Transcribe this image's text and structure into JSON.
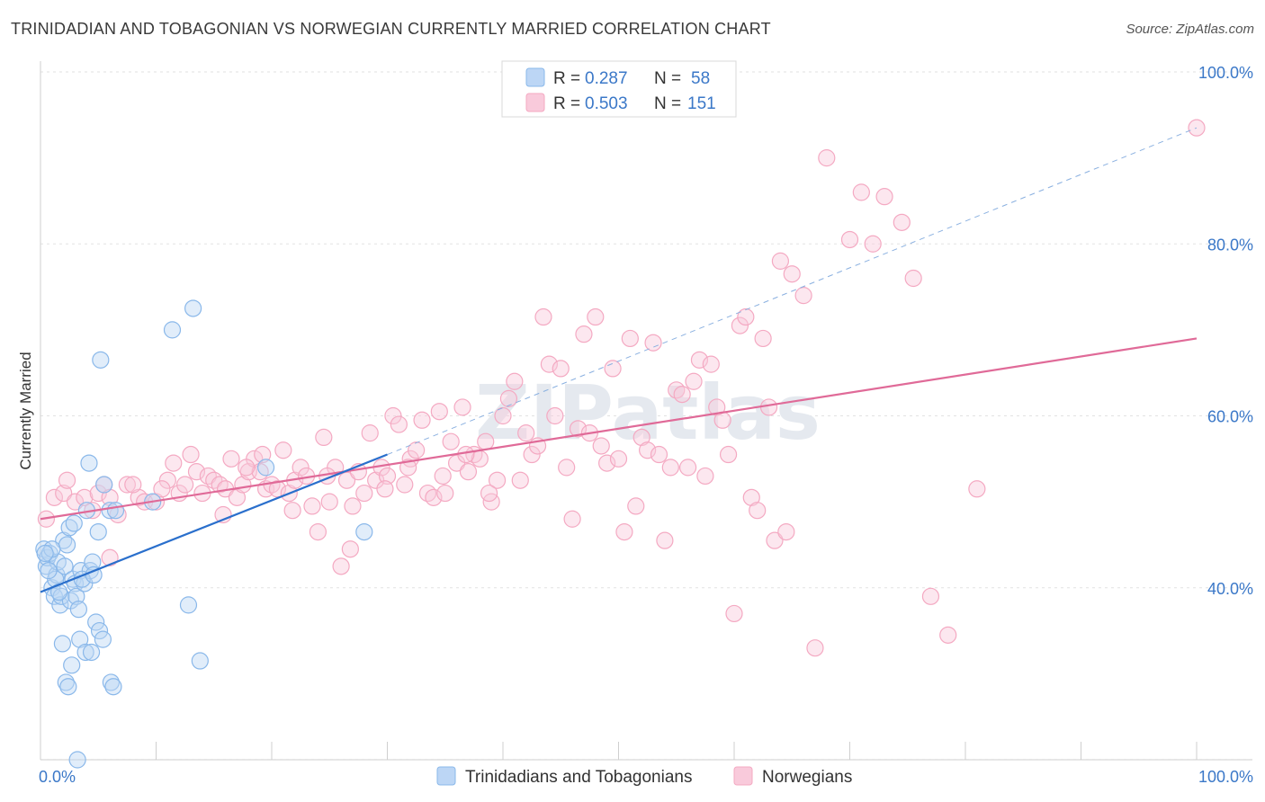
{
  "title": "TRINIDADIAN AND TOBAGONIAN VS NORWEGIAN CURRENTLY MARRIED CORRELATION CHART",
  "source": "Source: ZipAtlas.com",
  "watermark": "ZIPatlas",
  "colors": {
    "blue": "#8ab8ea",
    "blue_line": "#2a6fcc",
    "pink": "#f4a9c2",
    "pink_line": "#e06a98",
    "tick_text": "#3b78c8"
  },
  "legend_top": {
    "rows": [
      {
        "r_label": "R =",
        "r_value": "0.287",
        "n_label": "N =",
        "n_value": "58"
      },
      {
        "r_label": "R =",
        "r_value": "0.503",
        "n_label": "N =",
        "n_value": "151"
      }
    ]
  },
  "legend_bottom": [
    {
      "label": "Trinidadians and Tobagonians"
    },
    {
      "label": "Norwegians"
    }
  ],
  "chart_data": {
    "type": "scatter",
    "ylabel": "Currently Married",
    "xlim": [
      0,
      100
    ],
    "ylim": [
      20,
      100
    ],
    "x_tick_labels": [
      "0.0%",
      "100.0%"
    ],
    "y_ticks": [
      {
        "value": 40,
        "label": "40.0%"
      },
      {
        "value": 60,
        "label": "60.0%"
      },
      {
        "value": 80,
        "label": "80.0%"
      },
      {
        "value": 100,
        "label": "100.0%"
      }
    ],
    "grid": "horizontal dashed",
    "series": [
      {
        "name": "Trinidadians and Tobagonians",
        "color": "#8ab8ea",
        "trend": {
          "x1": 0,
          "y1": 39.5,
          "x2": 30,
          "y2": 55.5
        },
        "trend_dashed": {
          "x1": 30,
          "y1": 55.5,
          "x2": 100,
          "y2": 93.5
        },
        "points": [
          [
            0.3,
            44.5
          ],
          [
            0.5,
            42.5
          ],
          [
            0.6,
            43.5
          ],
          [
            0.8,
            44.0
          ],
          [
            1.0,
            40.0
          ],
          [
            1.2,
            39.0
          ],
          [
            1.4,
            41.5
          ],
          [
            1.5,
            43.0
          ],
          [
            1.7,
            38.0
          ],
          [
            1.8,
            39.0
          ],
          [
            2.0,
            45.5
          ],
          [
            2.1,
            42.5
          ],
          [
            2.3,
            45.0
          ],
          [
            2.5,
            47.0
          ],
          [
            2.6,
            38.5
          ],
          [
            2.8,
            41.0
          ],
          [
            3.0,
            40.5
          ],
          [
            3.1,
            39.0
          ],
          [
            3.3,
            37.5
          ],
          [
            3.5,
            42.0
          ],
          [
            3.8,
            40.5
          ],
          [
            4.0,
            49.0
          ],
          [
            4.2,
            54.5
          ],
          [
            4.3,
            42.0
          ],
          [
            4.5,
            43.0
          ],
          [
            5.0,
            46.5
          ],
          [
            5.2,
            66.5
          ],
          [
            5.5,
            52.0
          ],
          [
            6.0,
            49.0
          ],
          [
            6.5,
            49.0
          ],
          [
            1.0,
            44.5
          ],
          [
            1.3,
            41.0
          ],
          [
            1.9,
            33.5
          ],
          [
            2.2,
            29.0
          ],
          [
            2.4,
            28.5
          ],
          [
            2.7,
            31.0
          ],
          [
            3.4,
            34.0
          ],
          [
            3.9,
            32.5
          ],
          [
            4.4,
            32.5
          ],
          [
            4.8,
            36.0
          ],
          [
            5.1,
            35.0
          ],
          [
            5.4,
            34.0
          ],
          [
            6.1,
            29.0
          ],
          [
            6.3,
            28.5
          ],
          [
            9.7,
            50.0
          ],
          [
            11.4,
            70.0
          ],
          [
            12.8,
            38.0
          ],
          [
            13.2,
            72.5
          ],
          [
            13.8,
            31.5
          ],
          [
            19.5,
            54.0
          ],
          [
            28.0,
            46.5
          ],
          [
            3.2,
            20.0
          ],
          [
            0.7,
            42.0
          ],
          [
            1.6,
            39.5
          ],
          [
            2.9,
            47.5
          ],
          [
            3.6,
            41.0
          ],
          [
            4.6,
            41.5
          ],
          [
            0.4,
            44.0
          ]
        ]
      },
      {
        "name": "Norwegians",
        "color": "#f4a9c2",
        "trend": {
          "x1": 0,
          "y1": 48.0,
          "x2": 100,
          "y2": 69.0
        },
        "points": [
          [
            0.5,
            48.0
          ],
          [
            1.2,
            50.5
          ],
          [
            2.0,
            51.0
          ],
          [
            2.3,
            52.5
          ],
          [
            3.0,
            50.0
          ],
          [
            3.8,
            50.5
          ],
          [
            4.5,
            49.0
          ],
          [
            5.0,
            51.0
          ],
          [
            5.5,
            52.0
          ],
          [
            6.0,
            50.5
          ],
          [
            6.7,
            48.5
          ],
          [
            7.5,
            52.0
          ],
          [
            8.5,
            50.5
          ],
          [
            9.0,
            50.0
          ],
          [
            10.0,
            50.0
          ],
          [
            11.0,
            52.5
          ],
          [
            11.5,
            54.5
          ],
          [
            12.0,
            51.0
          ],
          [
            12.5,
            52.0
          ],
          [
            13.0,
            55.5
          ],
          [
            13.5,
            53.5
          ],
          [
            14.0,
            51.0
          ],
          [
            14.5,
            53.0
          ],
          [
            15.0,
            52.5
          ],
          [
            15.5,
            52.0
          ],
          [
            16.0,
            51.5
          ],
          [
            16.5,
            55.0
          ],
          [
            17.0,
            50.5
          ],
          [
            17.5,
            52.0
          ],
          [
            18.0,
            53.5
          ],
          [
            18.5,
            55.0
          ],
          [
            19.0,
            53.5
          ],
          [
            19.5,
            51.5
          ],
          [
            20.0,
            52.0
          ],
          [
            20.5,
            51.5
          ],
          [
            21.0,
            56.0
          ],
          [
            21.5,
            51.0
          ],
          [
            22.0,
            52.5
          ],
          [
            22.5,
            54.0
          ],
          [
            23.0,
            53.0
          ],
          [
            23.5,
            49.5
          ],
          [
            24.0,
            46.5
          ],
          [
            24.5,
            57.5
          ],
          [
            25.0,
            50.0
          ],
          [
            25.5,
            54.0
          ],
          [
            26.0,
            42.5
          ],
          [
            26.5,
            52.5
          ],
          [
            27.0,
            49.5
          ],
          [
            27.5,
            53.5
          ],
          [
            28.0,
            51.0
          ],
          [
            28.5,
            58.0
          ],
          [
            29.0,
            52.5
          ],
          [
            29.5,
            54.0
          ],
          [
            30.0,
            53.0
          ],
          [
            30.5,
            60.0
          ],
          [
            31.0,
            59.0
          ],
          [
            31.5,
            52.0
          ],
          [
            32.0,
            55.0
          ],
          [
            32.5,
            56.0
          ],
          [
            33.0,
            59.5
          ],
          [
            33.5,
            51.0
          ],
          [
            34.0,
            50.5
          ],
          [
            34.5,
            60.5
          ],
          [
            35.0,
            51.0
          ],
          [
            35.5,
            57.0
          ],
          [
            36.0,
            54.5
          ],
          [
            36.5,
            61.0
          ],
          [
            37.0,
            53.5
          ],
          [
            37.5,
            55.5
          ],
          [
            38.0,
            55.0
          ],
          [
            38.5,
            57.0
          ],
          [
            39.0,
            50.0
          ],
          [
            39.5,
            52.5
          ],
          [
            40.0,
            60.0
          ],
          [
            40.5,
            62.0
          ],
          [
            41.0,
            64.0
          ],
          [
            41.5,
            52.5
          ],
          [
            42.0,
            58.0
          ],
          [
            42.5,
            55.5
          ],
          [
            43.0,
            56.5
          ],
          [
            43.5,
            71.5
          ],
          [
            44.0,
            66.0
          ],
          [
            44.5,
            60.0
          ],
          [
            45.0,
            65.5
          ],
          [
            45.5,
            54.0
          ],
          [
            46.0,
            48.0
          ],
          [
            46.5,
            58.5
          ],
          [
            47.0,
            69.5
          ],
          [
            47.5,
            58.0
          ],
          [
            48.0,
            71.5
          ],
          [
            48.5,
            56.5
          ],
          [
            49.0,
            54.5
          ],
          [
            49.5,
            65.5
          ],
          [
            50.0,
            55.0
          ],
          [
            50.5,
            46.5
          ],
          [
            51.0,
            69.0
          ],
          [
            51.5,
            49.5
          ],
          [
            52.0,
            57.5
          ],
          [
            52.5,
            56.0
          ],
          [
            53.0,
            68.5
          ],
          [
            53.5,
            55.5
          ],
          [
            54.0,
            45.5
          ],
          [
            54.5,
            54.0
          ],
          [
            55.0,
            63.0
          ],
          [
            55.5,
            62.5
          ],
          [
            56.0,
            54.0
          ],
          [
            56.5,
            64.0
          ],
          [
            57.0,
            66.5
          ],
          [
            57.5,
            53.0
          ],
          [
            58.0,
            66.0
          ],
          [
            58.5,
            61.0
          ],
          [
            59.0,
            59.5
          ],
          [
            59.5,
            55.5
          ],
          [
            60.0,
            37.0
          ],
          [
            60.5,
            70.5
          ],
          [
            61.0,
            71.5
          ],
          [
            61.5,
            50.5
          ],
          [
            62.0,
            49.0
          ],
          [
            62.5,
            69.0
          ],
          [
            63.0,
            61.0
          ],
          [
            63.5,
            45.5
          ],
          [
            64.0,
            78.0
          ],
          [
            64.5,
            46.5
          ],
          [
            65.0,
            76.5
          ],
          [
            66.0,
            74.0
          ],
          [
            67.0,
            33.0
          ],
          [
            68.0,
            90.0
          ],
          [
            70.0,
            80.5
          ],
          [
            71.0,
            86.0
          ],
          [
            72.0,
            80.0
          ],
          [
            73.0,
            85.5
          ],
          [
            74.5,
            82.5
          ],
          [
            75.5,
            76.0
          ],
          [
            77.0,
            39.0
          ],
          [
            78.5,
            34.5
          ],
          [
            81.0,
            51.5
          ],
          [
            100.0,
            93.5
          ],
          [
            6.0,
            43.5
          ],
          [
            8.0,
            52.0
          ],
          [
            10.5,
            51.5
          ],
          [
            15.8,
            48.5
          ],
          [
            17.8,
            54.0
          ],
          [
            19.2,
            55.5
          ],
          [
            21.8,
            49.0
          ],
          [
            24.8,
            53.0
          ],
          [
            26.8,
            44.5
          ],
          [
            29.8,
            51.5
          ],
          [
            31.8,
            54.0
          ],
          [
            34.8,
            53.0
          ],
          [
            36.8,
            55.5
          ],
          [
            38.8,
            51.0
          ]
        ]
      }
    ]
  }
}
